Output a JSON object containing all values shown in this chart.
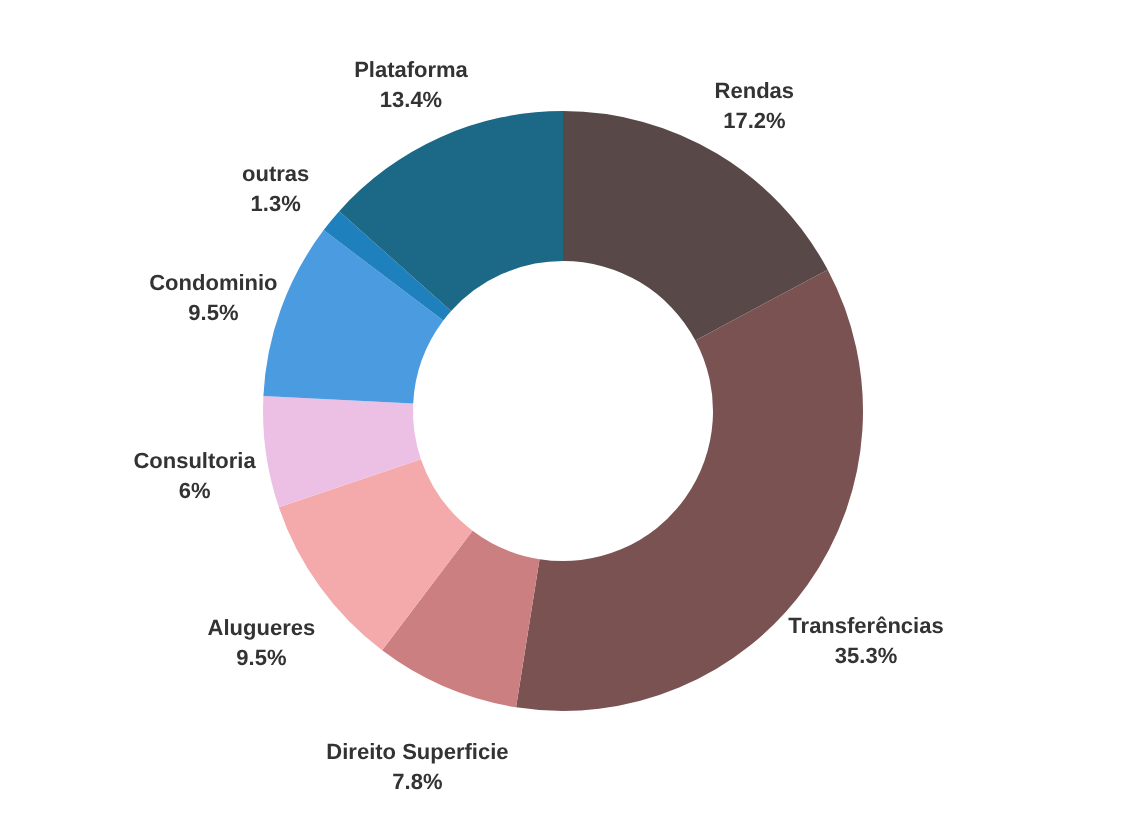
{
  "chart_data": {
    "type": "donut",
    "categories": [
      "Rendas",
      "Transferências",
      "Direito Superficie",
      "Alugueres",
      "Consultoria",
      "Condominio",
      "outras",
      "Plataforma"
    ],
    "values": [
      17.2,
      35.3,
      7.8,
      9.5,
      6,
      9.5,
      1.3,
      13.4
    ],
    "value_labels": [
      "17.2%",
      "35.3%",
      "7.8%",
      "9.5%",
      "6%",
      "9.5%",
      "1.3%",
      "13.4%"
    ],
    "colors": [
      "#594848",
      "#7a5252",
      "#cc7f80",
      "#f4aaaa",
      "#ecc0e4",
      "#4a9be0",
      "#1e80bc",
      "#1b6887"
    ]
  }
}
